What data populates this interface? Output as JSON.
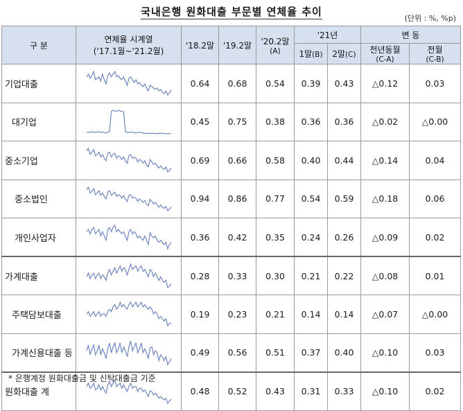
{
  "title": "국내은행 원화대출 부문별 연체율 추이",
  "unit": "(단위 : %, %p)",
  "header": {
    "category": "구  분",
    "timeseries": "연체율 시계열",
    "timeseries_range": "('17.1월~'21.2월)",
    "col_182": "'18.2말",
    "col_192": "'19.2말",
    "col_202": "'20.2말",
    "col_202_sub": "(A)",
    "col_21": "'21년",
    "col_211": "1말",
    "col_211_sub": "(B)",
    "col_212": "2말",
    "col_212_sub": "(C)",
    "change": "변  동",
    "yoy": "전년동월",
    "yoy_sub": "(C-A)",
    "mom": "전월",
    "mom_sub": "(C-B)"
  },
  "rows": [
    {
      "label": "기업대출",
      "v182": "0.64",
      "v192": "0.68",
      "v202": "0.54",
      "v211": "0.39",
      "v212": "0.43",
      "yoy": "△0.12",
      "mom": "0.03",
      "spark": [
        0.62,
        0.66,
        0.6,
        0.64,
        0.7,
        0.58,
        0.6,
        0.62,
        0.56,
        0.66,
        0.58,
        0.52,
        0.64,
        0.68,
        0.62,
        0.66,
        0.7,
        0.62,
        0.64,
        0.6,
        0.58,
        0.62,
        0.56,
        0.5,
        0.6,
        0.62,
        0.58,
        0.54,
        0.58,
        0.52,
        0.54,
        0.5,
        0.48,
        0.52,
        0.46,
        0.42,
        0.5,
        0.48,
        0.46,
        0.44,
        0.46,
        0.42,
        0.44,
        0.4,
        0.38,
        0.42,
        0.36,
        0.39,
        0.43
      ]
    },
    {
      "label": "대기업",
      "v182": "0.45",
      "v192": "0.75",
      "v202": "0.38",
      "v211": "0.36",
      "v212": "0.36",
      "yoy": "△0.02",
      "mom": "△0.00",
      "spark": [
        0.4,
        0.42,
        0.4,
        0.44,
        0.42,
        0.4,
        0.42,
        0.44,
        0.4,
        0.42,
        0.4,
        0.38,
        0.42,
        0.44,
        1.3,
        1.35,
        1.32,
        1.3,
        1.34,
        1.32,
        1.3,
        1.28,
        0.44,
        0.4,
        0.42,
        0.4,
        0.42,
        0.4,
        0.38,
        0.4,
        0.42,
        0.4,
        0.38,
        0.36,
        0.38,
        0.36,
        0.38,
        0.36,
        0.38,
        0.36,
        0.35,
        0.37,
        0.36,
        0.38,
        0.36,
        0.35,
        0.36,
        0.36,
        0.36
      ]
    },
    {
      "label": "중소기업",
      "v182": "0.69",
      "v192": "0.66",
      "v202": "0.58",
      "v211": "0.40",
      "v212": "0.44",
      "yoy": "△0.14",
      "mom": "0.04",
      "spark": [
        0.72,
        0.76,
        0.66,
        0.7,
        0.74,
        0.64,
        0.66,
        0.7,
        0.62,
        0.66,
        0.6,
        0.56,
        0.68,
        0.7,
        0.62,
        0.66,
        0.68,
        0.6,
        0.64,
        0.62,
        0.58,
        0.62,
        0.56,
        0.52,
        0.64,
        0.66,
        0.6,
        0.62,
        0.6,
        0.54,
        0.58,
        0.56,
        0.52,
        0.56,
        0.5,
        0.46,
        0.58,
        0.54,
        0.5,
        0.52,
        0.48,
        0.44,
        0.48,
        0.44,
        0.42,
        0.46,
        0.38,
        0.4,
        0.44
      ]
    },
    {
      "label": "중소법인",
      "v182": "0.94",
      "v192": "0.86",
      "v202": "0.77",
      "v211": "0.54",
      "v212": "0.59",
      "yoy": "△0.18",
      "mom": "0.06",
      "spark": [
        1.0,
        1.06,
        0.92,
        0.96,
        1.02,
        0.88,
        0.92,
        0.98,
        0.86,
        0.92,
        0.84,
        0.78,
        0.94,
        0.98,
        0.86,
        0.9,
        0.94,
        0.84,
        0.88,
        0.86,
        0.8,
        0.86,
        0.78,
        0.72,
        0.86,
        0.88,
        0.8,
        0.82,
        0.8,
        0.72,
        0.78,
        0.74,
        0.7,
        0.74,
        0.66,
        0.62,
        0.77,
        0.72,
        0.66,
        0.7,
        0.64,
        0.58,
        0.64,
        0.58,
        0.56,
        0.6,
        0.5,
        0.54,
        0.59
      ]
    },
    {
      "label": "개인사업자",
      "v182": "0.36",
      "v192": "0.42",
      "v202": "0.35",
      "v211": "0.24",
      "v212": "0.26",
      "yoy": "△0.09",
      "mom": "0.02",
      "spark": [
        0.36,
        0.38,
        0.34,
        0.38,
        0.4,
        0.34,
        0.36,
        0.38,
        0.32,
        0.36,
        0.32,
        0.28,
        0.38,
        0.4,
        0.36,
        0.4,
        0.42,
        0.36,
        0.38,
        0.36,
        0.34,
        0.36,
        0.32,
        0.28,
        0.36,
        0.38,
        0.34,
        0.36,
        0.34,
        0.3,
        0.32,
        0.3,
        0.28,
        0.32,
        0.28,
        0.24,
        0.35,
        0.32,
        0.3,
        0.32,
        0.28,
        0.26,
        0.28,
        0.26,
        0.24,
        0.26,
        0.2,
        0.24,
        0.26
      ]
    },
    {
      "label": "가계대출",
      "v182": "0.28",
      "v192": "0.33",
      "v202": "0.30",
      "v211": "0.21",
      "v212": "0.22",
      "yoy": "△0.08",
      "mom": "0.01",
      "spark": [
        0.26,
        0.28,
        0.25,
        0.27,
        0.28,
        0.25,
        0.27,
        0.28,
        0.25,
        0.27,
        0.26,
        0.24,
        0.28,
        0.3,
        0.27,
        0.29,
        0.31,
        0.28,
        0.3,
        0.32,
        0.29,
        0.31,
        0.3,
        0.27,
        0.3,
        0.33,
        0.3,
        0.31,
        0.32,
        0.29,
        0.31,
        0.32,
        0.29,
        0.3,
        0.28,
        0.26,
        0.3,
        0.29,
        0.26,
        0.28,
        0.26,
        0.24,
        0.26,
        0.24,
        0.23,
        0.24,
        0.2,
        0.21,
        0.22
      ]
    },
    {
      "label": "주택담보대출",
      "v182": "0.19",
      "v192": "0.23",
      "v202": "0.21",
      "v211": "0.14",
      "v212": "0.14",
      "yoy": "△0.07",
      "mom": "△0.00",
      "spark": [
        0.18,
        0.19,
        0.17,
        0.18,
        0.19,
        0.17,
        0.18,
        0.19,
        0.17,
        0.18,
        0.18,
        0.17,
        0.19,
        0.2,
        0.19,
        0.21,
        0.22,
        0.2,
        0.21,
        0.23,
        0.21,
        0.22,
        0.21,
        0.2,
        0.22,
        0.23,
        0.21,
        0.22,
        0.23,
        0.21,
        0.22,
        0.23,
        0.21,
        0.22,
        0.21,
        0.2,
        0.21,
        0.2,
        0.18,
        0.19,
        0.18,
        0.16,
        0.17,
        0.16,
        0.15,
        0.16,
        0.13,
        0.14,
        0.14
      ]
    },
    {
      "label": "가계신용대출 등",
      "v182": "0.49",
      "v192": "0.56",
      "v202": "0.51",
      "v211": "0.37",
      "v212": "0.40",
      "yoy": "△0.10",
      "mom": "0.03",
      "spark": [
        0.48,
        0.54,
        0.44,
        0.5,
        0.54,
        0.44,
        0.48,
        0.54,
        0.44,
        0.5,
        0.46,
        0.4,
        0.5,
        0.56,
        0.46,
        0.52,
        0.56,
        0.46,
        0.5,
        0.56,
        0.46,
        0.52,
        0.48,
        0.42,
        0.52,
        0.58,
        0.48,
        0.52,
        0.56,
        0.46,
        0.5,
        0.56,
        0.46,
        0.5,
        0.46,
        0.4,
        0.51,
        0.52,
        0.44,
        0.48,
        0.46,
        0.38,
        0.44,
        0.42,
        0.38,
        0.42,
        0.34,
        0.37,
        0.4
      ]
    },
    {
      "label": "원화대출  계",
      "v182": "0.48",
      "v192": "0.52",
      "v202": "0.43",
      "v211": "0.31",
      "v212": "0.33",
      "yoy": "△0.10",
      "mom": "0.02",
      "spark": [
        0.48,
        0.52,
        0.46,
        0.48,
        0.52,
        0.44,
        0.46,
        0.5,
        0.44,
        0.48,
        0.44,
        0.4,
        0.5,
        0.54,
        0.48,
        0.52,
        0.56,
        0.48,
        0.5,
        0.52,
        0.46,
        0.5,
        0.46,
        0.42,
        0.48,
        0.52,
        0.46,
        0.48,
        0.48,
        0.42,
        0.46,
        0.46,
        0.42,
        0.44,
        0.4,
        0.36,
        0.43,
        0.42,
        0.38,
        0.4,
        0.38,
        0.34,
        0.36,
        0.34,
        0.32,
        0.34,
        0.28,
        0.31,
        0.33
      ]
    }
  ],
  "footnote": "* 은행계정 원화대출금 및 신탁대출금 기준"
}
